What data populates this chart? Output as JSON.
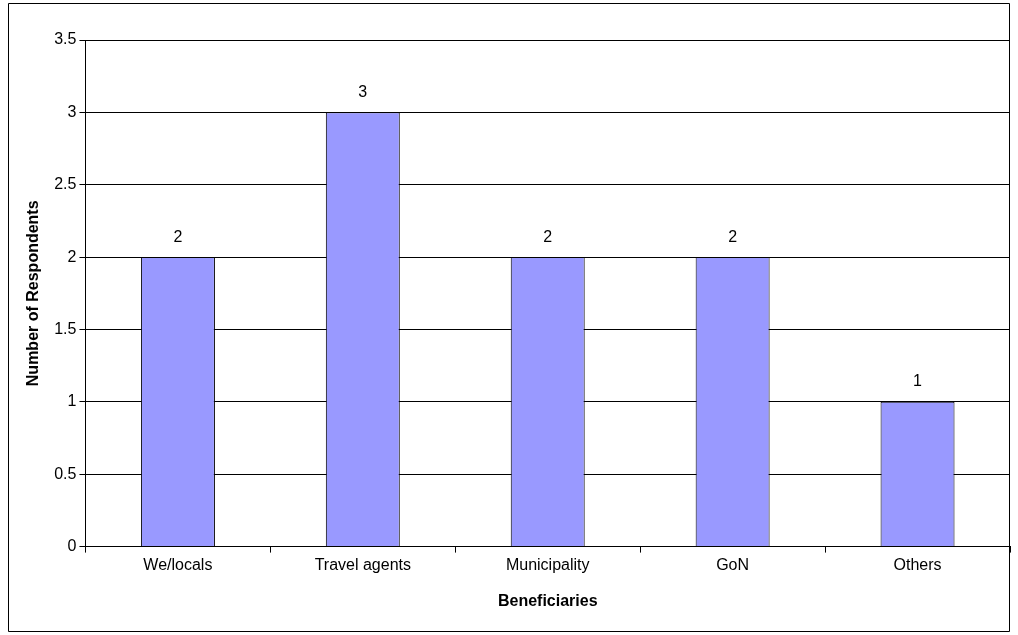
{
  "chart_data": {
    "type": "bar",
    "xlabel": "Beneficiaries",
    "ylabel": "Number of Respondents",
    "categories": [
      "We/locals",
      "Travel agents",
      "Municipality",
      "GoN",
      "Others"
    ],
    "values": [
      2,
      3,
      2,
      2,
      1
    ],
    "color": "#9999ff",
    "ylim": [
      0,
      3.5
    ],
    "yticks": [
      0,
      0.5,
      1,
      1.5,
      2,
      2.5,
      3,
      3.5
    ],
    "grid": "y",
    "legend": false,
    "data_labels": true
  }
}
